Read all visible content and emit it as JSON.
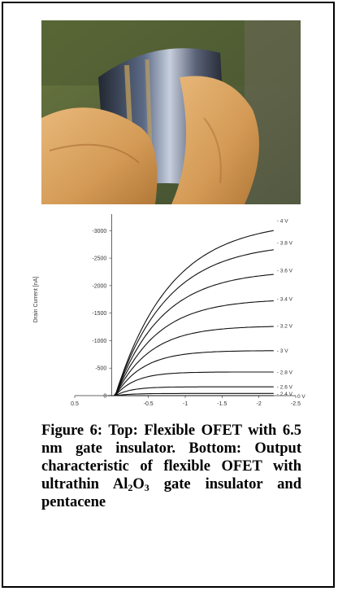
{
  "caption": {
    "lead": "Figure 6: Top: Flexible OFET with 6.5 nm gate insulator. Bottom: Output characteristic of flexible OFET with ultrathin Al",
    "sub1": "2",
    "mid": "O",
    "sub2": "3",
    "tail": " gate insulator and pentacene"
  },
  "photo": {
    "subject": "hand bending flexible OFET film",
    "colors": {
      "skin": "#d9a15c",
      "film": "#3a3f4a",
      "background": "#5c6b3a"
    }
  },
  "chart_data": {
    "type": "line",
    "title": "",
    "xlabel": "",
    "ylabel": "Drain Current [nA]",
    "x_axis_unit_label": "0 V",
    "xlim": [
      0.5,
      -2.5
    ],
    "ylim": [
      0,
      -3300
    ],
    "x_ticks": [
      "0.5",
      "-0.5",
      "-1",
      "-1.5",
      "-2",
      "-2.5"
    ],
    "y_ticks": [
      "-3000",
      "-2500",
      "-2000",
      "-1500",
      "-1000",
      "-500",
      "0"
    ],
    "series": [
      {
        "name": "- 4 V",
        "saturation": -3180
      },
      {
        "name": "- 3.8 V",
        "saturation": -2780
      },
      {
        "name": "- 3.6 V",
        "saturation": -2280
      },
      {
        "name": "- 3.4 V",
        "saturation": -1760
      },
      {
        "name": "- 3.2 V",
        "saturation": -1270
      },
      {
        "name": "- 3 V",
        "saturation": -820
      },
      {
        "name": "- 2.8 V",
        "saturation": -430
      },
      {
        "name": "- 2.6 V",
        "saturation": -160
      },
      {
        "name": "- 2.4 V",
        "saturation": -40
      },
      {
        "name": "0 V",
        "saturation": 0
      }
    ]
  }
}
